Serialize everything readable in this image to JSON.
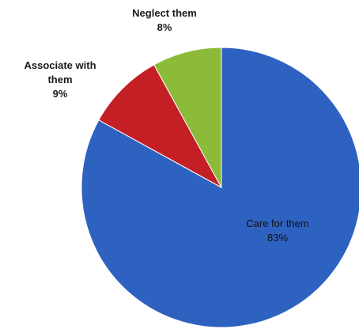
{
  "chart_data": {
    "type": "pie",
    "title": "",
    "start_angle_deg": 0,
    "direction": "clockwise",
    "slices": [
      {
        "label": "Care for them",
        "value": 83,
        "value_label": "83%",
        "color": "#2e62c0"
      },
      {
        "label": "Associate with them",
        "value": 9,
        "value_label": "9%",
        "color": "#c51f26"
      },
      {
        "label": "Neglect them",
        "value": 8,
        "value_label": "8%",
        "color": "#8bbb38"
      }
    ],
    "legend": "none",
    "data_labels": true
  },
  "labels": {
    "care": {
      "name": "Care for them",
      "pct": "83%"
    },
    "associate": {
      "line1": "Associate with",
      "line2": "them",
      "pct": "9%"
    },
    "neglect": {
      "name": "Neglect them",
      "pct": "8%"
    }
  }
}
